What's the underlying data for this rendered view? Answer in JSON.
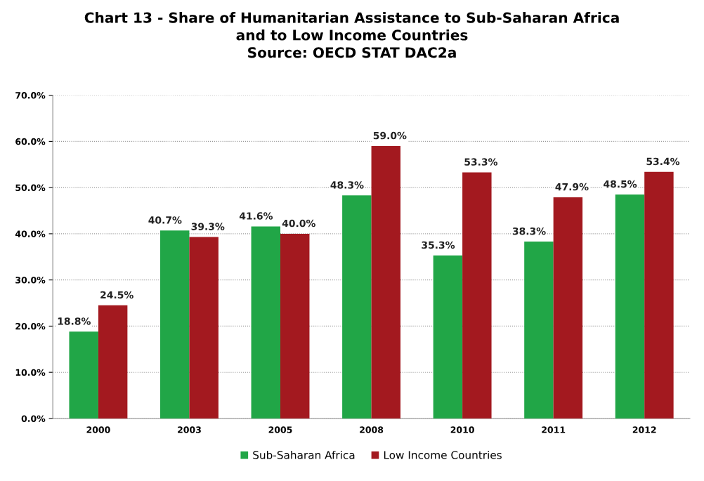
{
  "chart_data": {
    "type": "bar",
    "title": "Chart 13 - Share of Humanitarian Assistance to Sub-Saharan Africa\nand to Low Income Countries\nSource: OECD STAT DAC2a",
    "categories": [
      "2000",
      "2003",
      "2005",
      "2008",
      "2010",
      "2011",
      "2012"
    ],
    "series": [
      {
        "name": "Sub-Saharan Africa",
        "color": "#21a647",
        "values": [
          18.8,
          40.7,
          41.6,
          48.3,
          35.3,
          38.3,
          48.5
        ],
        "value_labels": [
          "18.8%",
          "40.7%",
          "41.6%",
          "48.3%",
          "35.3%",
          "38.3%",
          "48.5%"
        ]
      },
      {
        "name": "Low Income Countries",
        "color": "#a3191f",
        "values": [
          24.5,
          39.3,
          40.0,
          59.0,
          53.3,
          47.9,
          53.4
        ],
        "value_labels": [
          "24.5%",
          "39.3%",
          "40.0%",
          "59.0%",
          "53.3%",
          "47.9%",
          "53.4%"
        ]
      }
    ],
    "ylim": [
      0,
      70
    ],
    "yticks": [
      {
        "value": 0,
        "label": "0.0%"
      },
      {
        "value": 10,
        "label": "10.0%"
      },
      {
        "value": 20,
        "label": "20.0%"
      },
      {
        "value": 30,
        "label": "30.0%"
      },
      {
        "value": 40,
        "label": "40.0%"
      },
      {
        "value": 50,
        "label": "50.0%"
      },
      {
        "value": 60,
        "label": "60.0%"
      },
      {
        "value": 70,
        "label": "70.0%"
      }
    ],
    "grid": "y",
    "legend": "bottom"
  }
}
